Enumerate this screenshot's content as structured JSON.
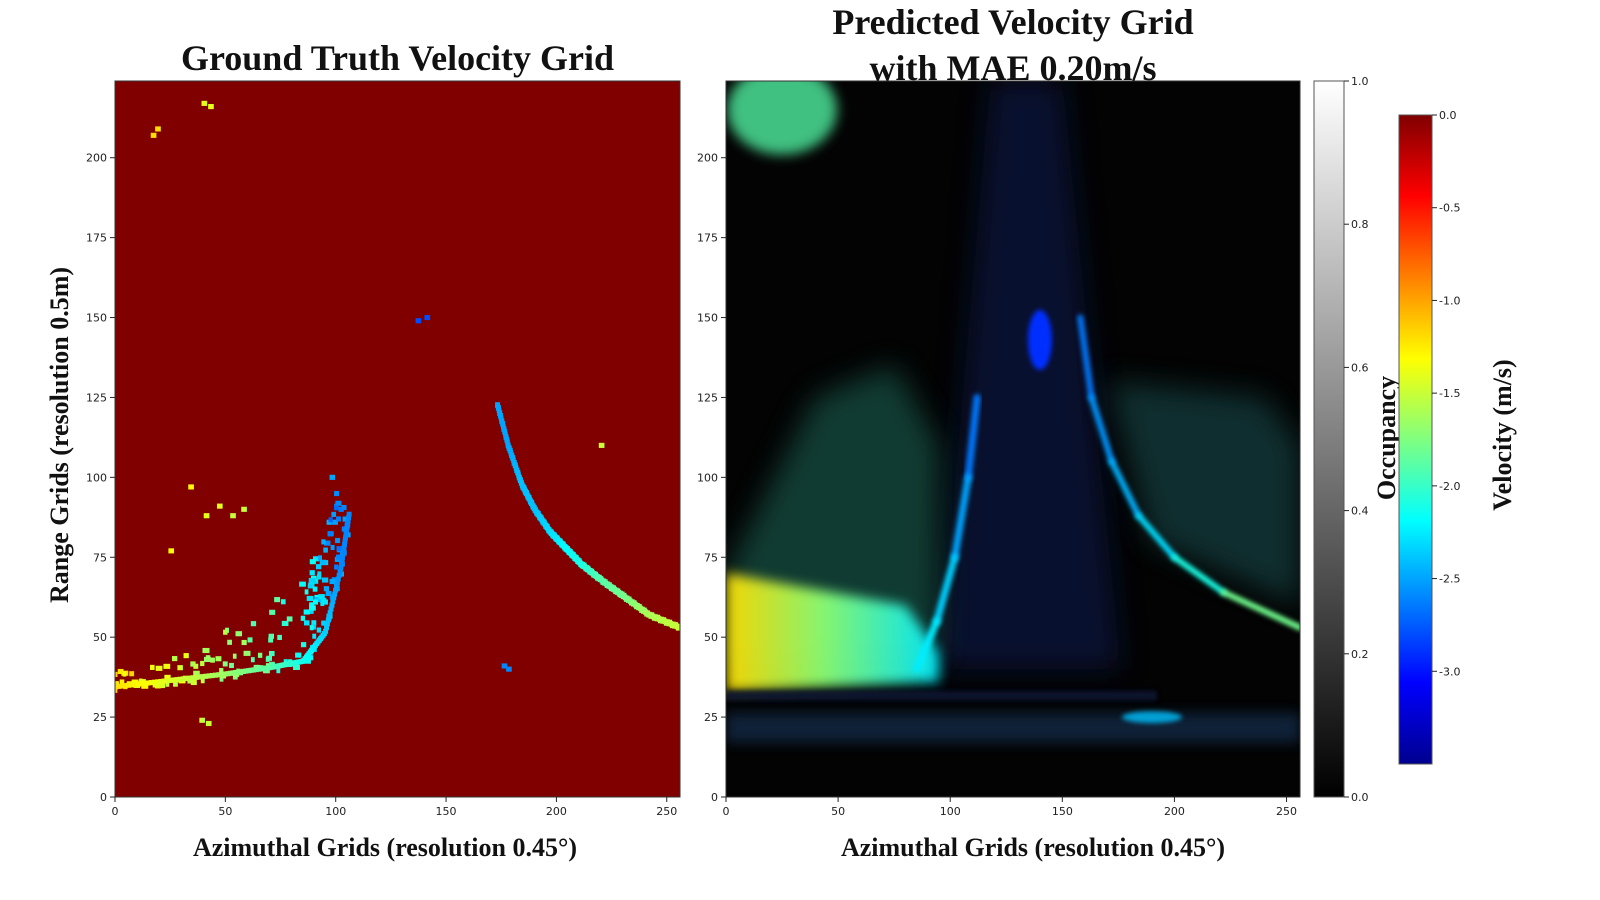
{
  "chart_data": [
    {
      "type": "heatmap",
      "title": "Ground Truth Velocity Grid",
      "xlabel": "Azimuthal Grids (resolution 0.45°)",
      "ylabel": "Range Grids (resolution 0.5m)",
      "xlim": [
        0,
        256
      ],
      "ylim": [
        0,
        224
      ],
      "xticks": [
        "0",
        "50",
        "100",
        "150",
        "200",
        "250"
      ],
      "yticks": [
        "0",
        "25",
        "50",
        "75",
        "100",
        "125",
        "150",
        "175",
        "200"
      ],
      "background_value": 0.0,
      "points": [
        {
          "x": 40,
          "y": 217,
          "v": -1.4
        },
        {
          "x": 43,
          "y": 216,
          "v": -1.4
        },
        {
          "x": 17,
          "y": 207,
          "v": -1.2
        },
        {
          "x": 19,
          "y": 209,
          "v": -1.2
        },
        {
          "x": 137,
          "y": 149,
          "v": -2.8
        },
        {
          "x": 141,
          "y": 150,
          "v": -2.8
        },
        {
          "x": 176,
          "y": 41,
          "v": -2.6
        },
        {
          "x": 178,
          "y": 40,
          "v": -2.6
        },
        {
          "x": 39,
          "y": 24,
          "v": -1.5
        },
        {
          "x": 42,
          "y": 23,
          "v": -1.5
        },
        {
          "x": 25,
          "y": 77,
          "v": -1.3
        },
        {
          "x": 34,
          "y": 97,
          "v": -1.3
        },
        {
          "x": 41,
          "y": 88,
          "v": -1.4
        },
        {
          "x": 47,
          "y": 91,
          "v": -1.4
        },
        {
          "x": 53,
          "y": 88,
          "v": -1.5
        },
        {
          "x": 58,
          "y": 90,
          "v": -1.5
        },
        {
          "x": 220,
          "y": 110,
          "v": -1.5
        },
        {
          "x": 98,
          "y": 100,
          "v": -2.5
        }
      ],
      "arc_points": [
        {
          "x": 173,
          "y": 123,
          "v": -2.5
        },
        {
          "x": 178,
          "y": 110,
          "v": -2.5
        },
        {
          "x": 184,
          "y": 98,
          "v": -2.4
        },
        {
          "x": 190,
          "y": 90,
          "v": -2.4
        },
        {
          "x": 197,
          "y": 83,
          "v": -2.3
        },
        {
          "x": 204,
          "y": 78,
          "v": -2.2
        },
        {
          "x": 211,
          "y": 73,
          "v": -2.1
        },
        {
          "x": 220,
          "y": 68,
          "v": -1.9
        },
        {
          "x": 230,
          "y": 63,
          "v": -1.8
        },
        {
          "x": 242,
          "y": 57,
          "v": -1.6
        },
        {
          "x": 256,
          "y": 53,
          "v": -1.5
        }
      ],
      "cluster": {
        "lower_edge": [
          {
            "x": 0,
            "y": 33
          },
          {
            "x": 25,
            "y": 35
          },
          {
            "x": 50,
            "y": 37
          },
          {
            "x": 70,
            "y": 39
          },
          {
            "x": 85,
            "y": 41
          },
          {
            "x": 95,
            "y": 50
          },
          {
            "x": 102,
            "y": 70
          },
          {
            "x": 106,
            "y": 88
          }
        ],
        "upper_edge": [
          {
            "x": 0,
            "y": 39
          },
          {
            "x": 25,
            "y": 43
          },
          {
            "x": 50,
            "y": 52
          },
          {
            "x": 70,
            "y": 60
          },
          {
            "x": 85,
            "y": 70
          },
          {
            "x": 92,
            "y": 78
          },
          {
            "x": 97,
            "y": 87
          },
          {
            "x": 100,
            "y": 95
          }
        ],
        "v_start": -1.2,
        "v_end": -2.6
      }
    },
    {
      "type": "heatmap",
      "title_line1": "Predicted Velocity Grid",
      "title_line2": "with MAE 0.20m/s",
      "xlabel": "Azimuthal Grids (resolution 0.45°)",
      "xlim": [
        0,
        256
      ],
      "ylim": [
        0,
        224
      ],
      "xticks": [
        "0",
        "50",
        "100",
        "150",
        "200",
        "250"
      ],
      "yticks": [
        "0",
        "25",
        "50",
        "75",
        "100",
        "125",
        "150",
        "175",
        "200"
      ],
      "features": {
        "upper_left_blob": {
          "x": 25,
          "y": 215,
          "v": -1.9
        },
        "center_column_spot": {
          "x": 140,
          "y": 143,
          "v": -2.9
        },
        "left_arc": [
          {
            "x": 112,
            "y": 125,
            "v": -2.7
          },
          {
            "x": 108,
            "y": 100,
            "v": -2.6
          },
          {
            "x": 102,
            "y": 75,
            "v": -2.4
          },
          {
            "x": 94,
            "y": 55,
            "v": -2.3
          },
          {
            "x": 85,
            "y": 40,
            "v": -2.2
          }
        ],
        "right_arc": [
          {
            "x": 158,
            "y": 150,
            "v": -2.7
          },
          {
            "x": 163,
            "y": 125,
            "v": -2.6
          },
          {
            "x": 172,
            "y": 105,
            "v": -2.5
          },
          {
            "x": 184,
            "y": 88,
            "v": -2.4
          },
          {
            "x": 200,
            "y": 75,
            "v": -2.2
          },
          {
            "x": 222,
            "y": 64,
            "v": -2.0
          },
          {
            "x": 256,
            "y": 53,
            "v": -1.6
          }
        ],
        "lower_left_wedge": [
          {
            "x": 0,
            "y": 33,
            "v": -1.2
          },
          {
            "x": 0,
            "y": 70,
            "v": -1.3
          },
          {
            "x": 40,
            "y": 65,
            "v": -1.6
          },
          {
            "x": 80,
            "y": 60,
            "v": -2.0
          },
          {
            "x": 95,
            "y": 45,
            "v": -2.2
          },
          {
            "x": 95,
            "y": 36,
            "v": -2.2
          }
        ],
        "ground_band_y": 32
      }
    }
  ],
  "occupancy_colorbar": {
    "label": "Occupancy",
    "ticks": [
      "0.0",
      "0.2",
      "0.4",
      "0.6",
      "0.8",
      "1.0"
    ],
    "range": [
      0.0,
      1.0
    ],
    "colors": [
      "#000000",
      "#ffffff"
    ]
  },
  "velocity_colorbar": {
    "label": "Velocity (m/s)",
    "ticks": [
      "0.0",
      "-0.5",
      "-1.0",
      "-1.5",
      "-2.0",
      "-2.5",
      "-3.0"
    ],
    "range": [
      -3.5,
      0.0
    ],
    "colormap": "jet"
  }
}
